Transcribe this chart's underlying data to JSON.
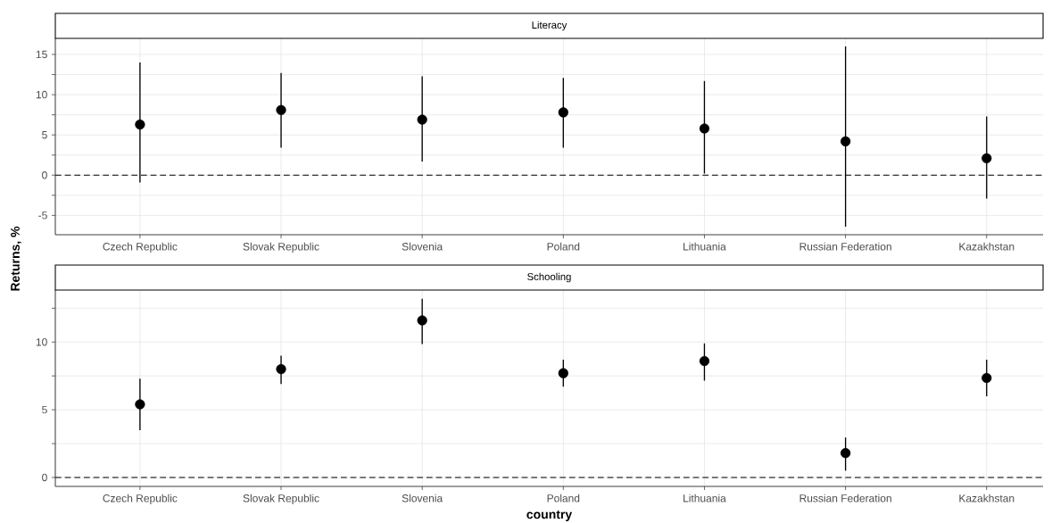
{
  "chart_data": [
    {
      "type": "scatter",
      "title": "Literacy",
      "ylabel": "Returns, %",
      "categories": [
        "Czech Republic",
        "Slovak Republic",
        "Slovenia",
        "Poland",
        "Lithuania",
        "Russian Federation",
        "Kazakhstan"
      ],
      "series": [
        {
          "color": "#000000",
          "values": [
            6.3,
            8.1,
            6.9,
            7.8,
            5.8,
            4.2,
            2.1
          ],
          "errors": [
            [
              -0.9,
              14.0
            ],
            [
              3.4,
              12.7
            ],
            [
              1.7,
              12.3
            ],
            [
              3.4,
              12.1
            ],
            [
              0.2,
              11.7
            ],
            [
              -6.4,
              16.0
            ],
            [
              -2.9,
              7.3
            ]
          ]
        }
      ],
      "marker": "circle",
      "grid": true,
      "ylim": [
        -7.4,
        17.0
      ],
      "yticks": [
        -5,
        {
          "value": -2.5,
          "label": null
        },
        0,
        {
          "value": 2.5,
          "label": null
        },
        5,
        {
          "value": 7.5,
          "label": null
        },
        10,
        {
          "value": 12.5,
          "label": null
        },
        15
      ],
      "ref_lines": [
        {
          "axis": "y",
          "value": 0,
          "line_style": "dashed",
          "color": "#000000"
        }
      ]
    },
    {
      "type": "scatter",
      "title": "Schooling",
      "xlabel": "country",
      "categories": [
        "Czech Republic",
        "Slovak Republic",
        "Slovenia",
        "Poland",
        "Lithuania",
        "Russian Federation",
        "Kazakhstan"
      ],
      "series": [
        {
          "color": "#000000",
          "values": [
            5.4,
            8.0,
            11.6,
            7.7,
            8.6,
            1.8,
            7.35
          ],
          "errors": [
            [
              3.5,
              7.3
            ],
            [
              6.9,
              9.0
            ],
            [
              9.85,
              13.2
            ],
            [
              6.7,
              8.7
            ],
            [
              7.15,
              9.9
            ],
            [
              0.5,
              2.95
            ],
            [
              6.0,
              8.7
            ]
          ]
        }
      ],
      "marker": "circle",
      "grid": true,
      "ylim": [
        -0.66,
        13.84
      ],
      "yticks": [
        0,
        {
          "value": 2.5,
          "label": null
        },
        5,
        {
          "value": 7.5,
          "label": null
        },
        10,
        {
          "value": 12.5,
          "label": null
        }
      ],
      "ref_lines": [
        {
          "axis": "y",
          "value": 0,
          "line_style": "dashed",
          "color": "#000000"
        }
      ]
    }
  ]
}
